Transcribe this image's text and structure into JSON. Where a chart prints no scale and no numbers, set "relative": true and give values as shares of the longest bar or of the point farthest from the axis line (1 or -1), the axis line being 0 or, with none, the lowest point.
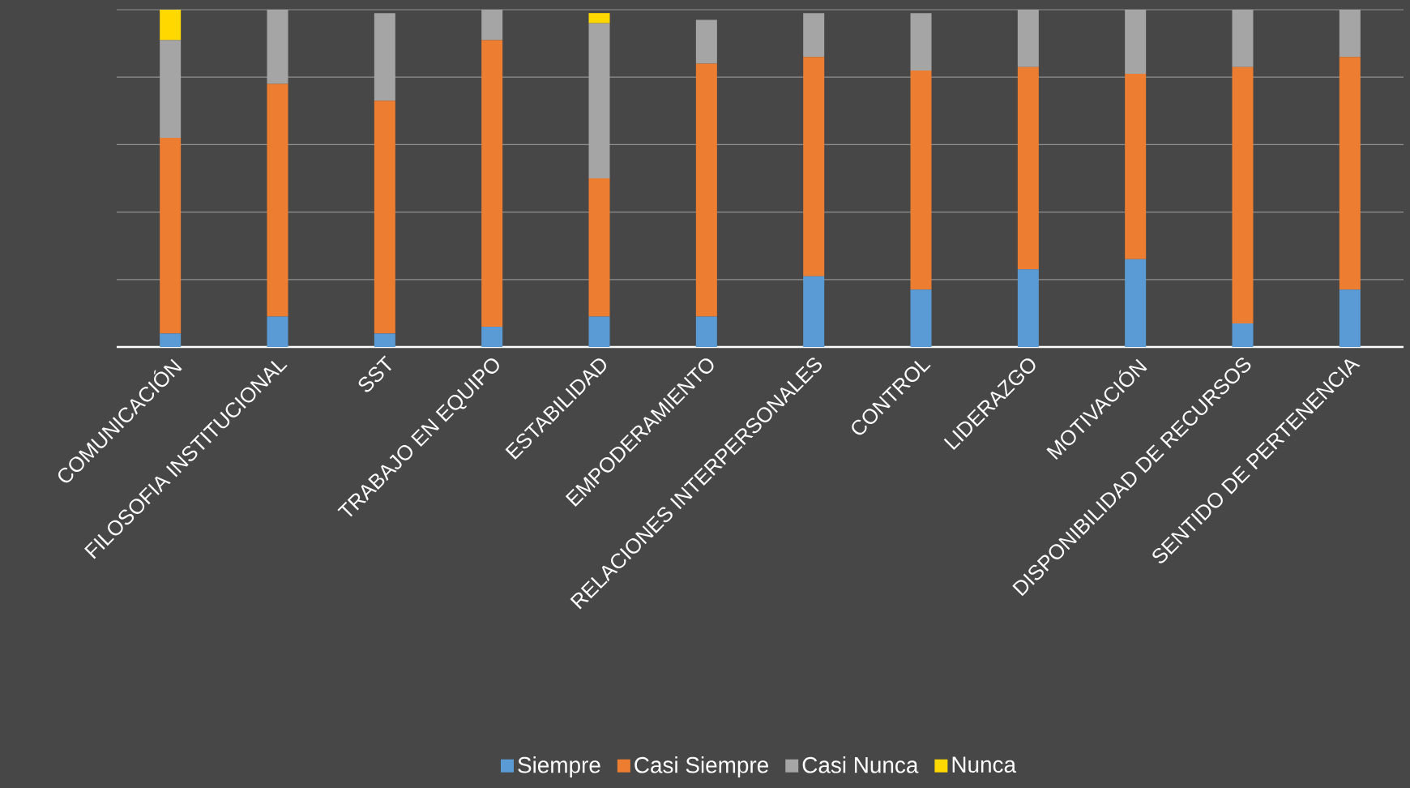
{
  "chart_data": {
    "type": "bar",
    "stacked": true,
    "relative": true,
    "grid": "y",
    "legend": "bottom",
    "categories": [
      "COMUNICACIÓN",
      "FILOSOFIA INSTITUCIONAL",
      "SST",
      "TRABAJO EN EQUIPO",
      "ESTABILIDAD",
      "EMPODERAMIENTO",
      "RELACIONES INTERPERSONALES",
      "CONTROL",
      "LIDERAZGO",
      "MOTIVACIÓN",
      "DISPONIBILIDAD DE RECURSOS",
      "SENTIDO DE PERTENENCIA"
    ],
    "series": [
      {
        "name": "Siempre",
        "color": "#5b9bd5",
        "values": [
          0.04,
          0.09,
          0.04,
          0.06,
          0.09,
          0.09,
          0.21,
          0.17,
          0.23,
          0.26,
          0.07,
          0.17
        ]
      },
      {
        "name": "Casi Siempre",
        "color": "#ed7d31",
        "values": [
          0.58,
          0.69,
          0.69,
          0.85,
          0.41,
          0.75,
          0.65,
          0.65,
          0.6,
          0.55,
          0.76,
          0.69
        ]
      },
      {
        "name": "Casi Nunca",
        "color": "#a5a5a5",
        "values": [
          0.29,
          0.22,
          0.26,
          0.09,
          0.46,
          0.13,
          0.13,
          0.17,
          0.17,
          0.19,
          0.17,
          0.14
        ]
      },
      {
        "name": "Nunca",
        "color": "#ffd800",
        "values": [
          0.09,
          null,
          null,
          null,
          0.03,
          null,
          null,
          null,
          null,
          null,
          null,
          null
        ]
      }
    ]
  }
}
